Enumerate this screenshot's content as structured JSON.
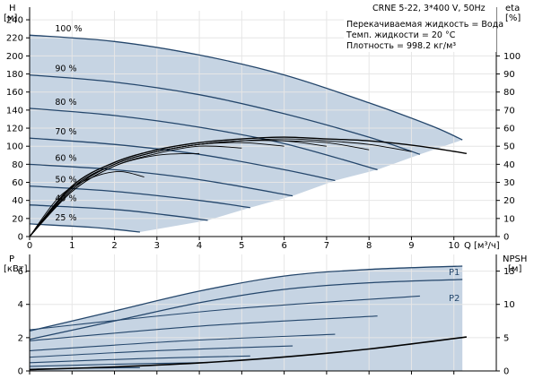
{
  "chart_data": [
    {
      "type": "line",
      "title": "CRNE 5-22, 3*400 V, 50Hz",
      "info_lines": [
        "Перекачиваемая жидкость = Вода",
        "Темп. жидкости = 20 °C",
        "Плотность = 998.2 кг/м³"
      ],
      "y_label_top": "H",
      "y_unit": "[м]",
      "y2_label_top": "eta",
      "y2_unit": "[%]",
      "x_label": "Q",
      "x_unit": "[м³/ч]",
      "xlim": [
        0,
        11
      ],
      "ylim": [
        0,
        250
      ],
      "y2lim": [
        0,
        125
      ],
      "x_ticks": [
        0,
        1,
        2,
        3,
        4,
        5,
        6,
        7,
        8,
        9,
        10
      ],
      "y_ticks": [
        0,
        20,
        40,
        60,
        80,
        100,
        120,
        140,
        160,
        180,
        200,
        220,
        240
      ],
      "y2_ticks": [
        0,
        10,
        20,
        30,
        40,
        50,
        60,
        70,
        80,
        90,
        100
      ],
      "head_series": [
        {
          "speed": "100 %",
          "x": [
            0,
            2,
            4,
            6,
            8,
            9.5,
            10.2
          ],
          "y": [
            223,
            216,
            201,
            179,
            148,
            122,
            107
          ]
        },
        {
          "speed": "90 %",
          "x": [
            0,
            2,
            4,
            6,
            8,
            9.2
          ],
          "y": [
            179,
            171,
            157,
            136,
            110,
            91
          ]
        },
        {
          "speed": "80 %",
          "x": [
            0,
            2,
            4,
            6,
            8.2
          ],
          "y": [
            142,
            134,
            121,
            103,
            74
          ]
        },
        {
          "speed": "70 %",
          "x": [
            0,
            2,
            4,
            6,
            7.2
          ],
          "y": [
            109,
            102,
            91,
            74,
            62
          ]
        },
        {
          "speed": "60 %",
          "x": [
            0,
            2,
            4,
            6.2
          ],
          "y": [
            80,
            74,
            63,
            45
          ]
        },
        {
          "speed": "50 %",
          "x": [
            0,
            2,
            4,
            5.2
          ],
          "y": [
            56,
            50,
            40,
            32
          ]
        },
        {
          "speed": "40 %",
          "x": [
            0,
            2,
            3.2,
            4.2
          ],
          "y": [
            35,
            30,
            24,
            18
          ]
        },
        {
          "speed": "25 %",
          "x": [
            0,
            1.5,
            2.6
          ],
          "y": [
            14,
            10,
            5
          ]
        }
      ],
      "eta_series": [
        {
          "x": [
            0,
            1,
            2,
            3,
            4,
            5,
            6,
            7,
            8,
            9.2,
            10.3
          ],
          "y": [
            0,
            28,
            41,
            48,
            52,
            54,
            55,
            54,
            53,
            50,
            46
          ]
        },
        {
          "x": [
            0,
            1,
            2,
            3,
            4,
            5,
            6,
            7,
            8,
            9
          ],
          "y": [
            0,
            27,
            40,
            47,
            51,
            53,
            54,
            53,
            51,
            47
          ]
        },
        {
          "x": [
            0,
            1,
            2,
            3,
            4,
            5,
            6,
            7,
            8
          ],
          "y": [
            0,
            27,
            40,
            47,
            51,
            53,
            53,
            52,
            48
          ]
        },
        {
          "x": [
            0,
            1,
            2,
            3,
            4,
            5,
            6,
            7
          ],
          "y": [
            0,
            26,
            40,
            47,
            51,
            53,
            53,
            50
          ]
        },
        {
          "x": [
            0,
            1,
            2,
            3,
            4,
            5,
            6
          ],
          "y": [
            0,
            26,
            40,
            47,
            51,
            52,
            50
          ]
        },
        {
          "x": [
            0,
            1,
            2,
            3,
            4,
            5
          ],
          "y": [
            0,
            25,
            39,
            46,
            50,
            49
          ]
        },
        {
          "x": [
            0,
            1,
            2,
            3,
            4
          ],
          "y": [
            0,
            25,
            39,
            45,
            46
          ]
        },
        {
          "x": [
            0,
            0.7,
            1.4,
            2.1,
            2.7
          ],
          "y": [
            0,
            22,
            32,
            36,
            33
          ]
        }
      ]
    },
    {
      "type": "line",
      "y_label_top": "P",
      "y_unit": "[кВт]",
      "y2_label_top": "NPSH",
      "y2_unit": "[м]",
      "xlim": [
        0,
        11
      ],
      "ylim": [
        0,
        7
      ],
      "y2lim": [
        0,
        17.5
      ],
      "y_ticks": [
        0,
        2,
        4,
        6
      ],
      "y2_ticks": [
        0,
        5,
        10,
        15
      ],
      "series_labels": [
        "P1",
        "P2"
      ],
      "power_p1": {
        "x": [
          0,
          2,
          4,
          6,
          8,
          10.2
        ],
        "y": [
          2.4,
          3.6,
          4.8,
          5.7,
          6.1,
          6.3
        ]
      },
      "power_p2": {
        "x": [
          0,
          2,
          4,
          6,
          8,
          10.2
        ],
        "y": [
          1.9,
          3.0,
          4.1,
          4.9,
          5.3,
          5.5
        ]
      },
      "power_p1_lower": {
        "x": [
          0,
          1.3,
          2.6
        ],
        "y": [
          0.1,
          0.15,
          0.2
        ]
      },
      "power_speed_ends": [
        {
          "x_end": 9.2,
          "y_end": 4.5
        },
        {
          "x_end": 8.2,
          "y_end": 3.3
        },
        {
          "x_end": 7.2,
          "y_end": 2.2
        },
        {
          "x_end": 6.2,
          "y_end": 1.5
        },
        {
          "x_end": 5.2,
          "y_end": 0.9
        },
        {
          "x_end": 4.2,
          "y_end": 0.5
        },
        {
          "x_end": 2.6,
          "y_end": 0.2
        }
      ],
      "npsh": {
        "x": [
          0,
          2,
          4,
          6,
          8,
          10.3
        ],
        "y": [
          0.2,
          0.6,
          1.2,
          2.1,
          3.3,
          5.1
        ]
      }
    }
  ]
}
